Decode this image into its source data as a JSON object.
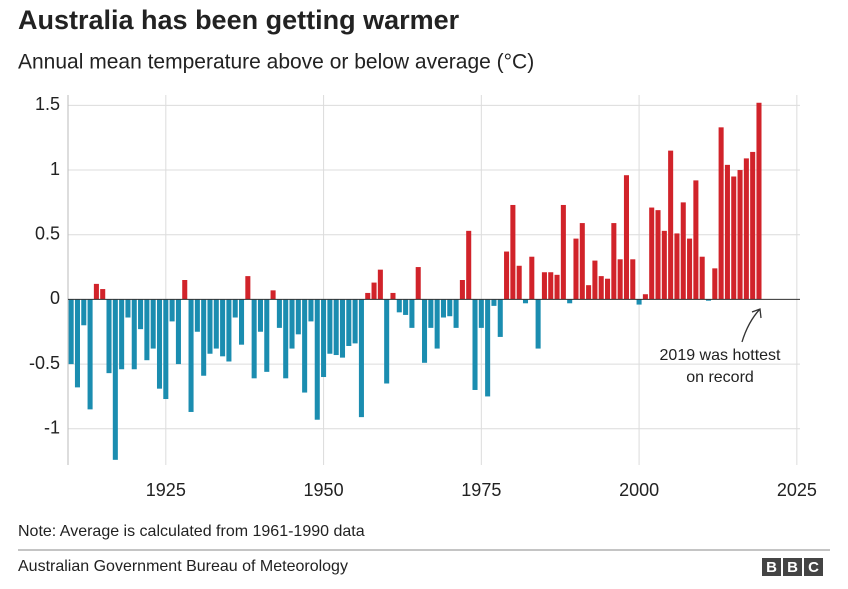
{
  "chart_data": {
    "type": "bar",
    "title": "Australia has been getting warmer",
    "subtitle": "Annual mean temperature above or below average (°C)",
    "x": [
      1910,
      1911,
      1912,
      1913,
      1914,
      1915,
      1916,
      1917,
      1918,
      1919,
      1920,
      1921,
      1922,
      1923,
      1924,
      1925,
      1926,
      1927,
      1928,
      1929,
      1930,
      1931,
      1932,
      1933,
      1934,
      1935,
      1936,
      1937,
      1938,
      1939,
      1940,
      1941,
      1942,
      1943,
      1944,
      1945,
      1946,
      1947,
      1948,
      1949,
      1950,
      1951,
      1952,
      1953,
      1954,
      1955,
      1956,
      1957,
      1958,
      1959,
      1960,
      1961,
      1962,
      1963,
      1964,
      1965,
      1966,
      1967,
      1968,
      1969,
      1970,
      1971,
      1972,
      1973,
      1974,
      1975,
      1976,
      1977,
      1978,
      1979,
      1980,
      1981,
      1982,
      1983,
      1984,
      1985,
      1986,
      1987,
      1988,
      1989,
      1990,
      1991,
      1992,
      1993,
      1994,
      1995,
      1996,
      1997,
      1998,
      1999,
      2000,
      2001,
      2002,
      2003,
      2004,
      2005,
      2006,
      2007,
      2008,
      2009,
      2010,
      2011,
      2012,
      2013,
      2014,
      2015,
      2016,
      2017,
      2018,
      2019
    ],
    "values": [
      -0.5,
      -0.68,
      -0.2,
      -0.85,
      0.12,
      0.08,
      -0.57,
      -1.24,
      -0.54,
      -0.14,
      -0.54,
      -0.23,
      -0.47,
      -0.38,
      -0.69,
      -0.77,
      -0.17,
      -0.5,
      0.15,
      -0.87,
      -0.25,
      -0.59,
      -0.42,
      -0.38,
      -0.44,
      -0.48,
      -0.14,
      -0.35,
      0.18,
      -0.61,
      -0.25,
      -0.56,
      0.07,
      -0.22,
      -0.61,
      -0.38,
      -0.27,
      -0.72,
      -0.17,
      -0.93,
      -0.6,
      -0.42,
      -0.43,
      -0.45,
      -0.36,
      -0.34,
      -0.91,
      0.05,
      0.13,
      0.23,
      -0.65,
      0.05,
      -0.1,
      -0.12,
      -0.22,
      0.25,
      -0.49,
      -0.22,
      -0.38,
      -0.14,
      -0.13,
      -0.22,
      0.15,
      0.53,
      -0.7,
      -0.22,
      -0.75,
      -0.05,
      -0.29,
      0.37,
      0.73,
      0.26,
      -0.03,
      0.33,
      -0.38,
      0.21,
      0.21,
      0.19,
      0.73,
      -0.03,
      0.47,
      0.59,
      0.11,
      0.3,
      0.18,
      0.16,
      0.59,
      0.31,
      0.96,
      0.31,
      -0.04,
      0.04,
      0.71,
      0.69,
      0.53,
      1.15,
      0.51,
      0.75,
      0.47,
      0.92,
      0.33,
      -0.01,
      0.24,
      1.33,
      1.04,
      0.95,
      1.0,
      1.09,
      1.14,
      1.52
    ],
    "positive_color": "#d1232a",
    "negative_color": "#1b8db0",
    "xlim": [
      1909.5,
      2025.5
    ],
    "xticks": [
      1925,
      1950,
      1975,
      2000,
      2025
    ],
    "ylim": [
      -1.28,
      1.58
    ],
    "yticks": [
      1.5,
      1,
      0.5,
      0,
      -0.5,
      -1
    ],
    "grid": true,
    "annotation": [
      "2019 was hottest",
      "on record"
    ],
    "note": "Note: Average is calculated from 1961-1990 data",
    "source": "Australian Government Bureau of Meteorology",
    "logo": [
      "B",
      "B",
      "C"
    ]
  }
}
